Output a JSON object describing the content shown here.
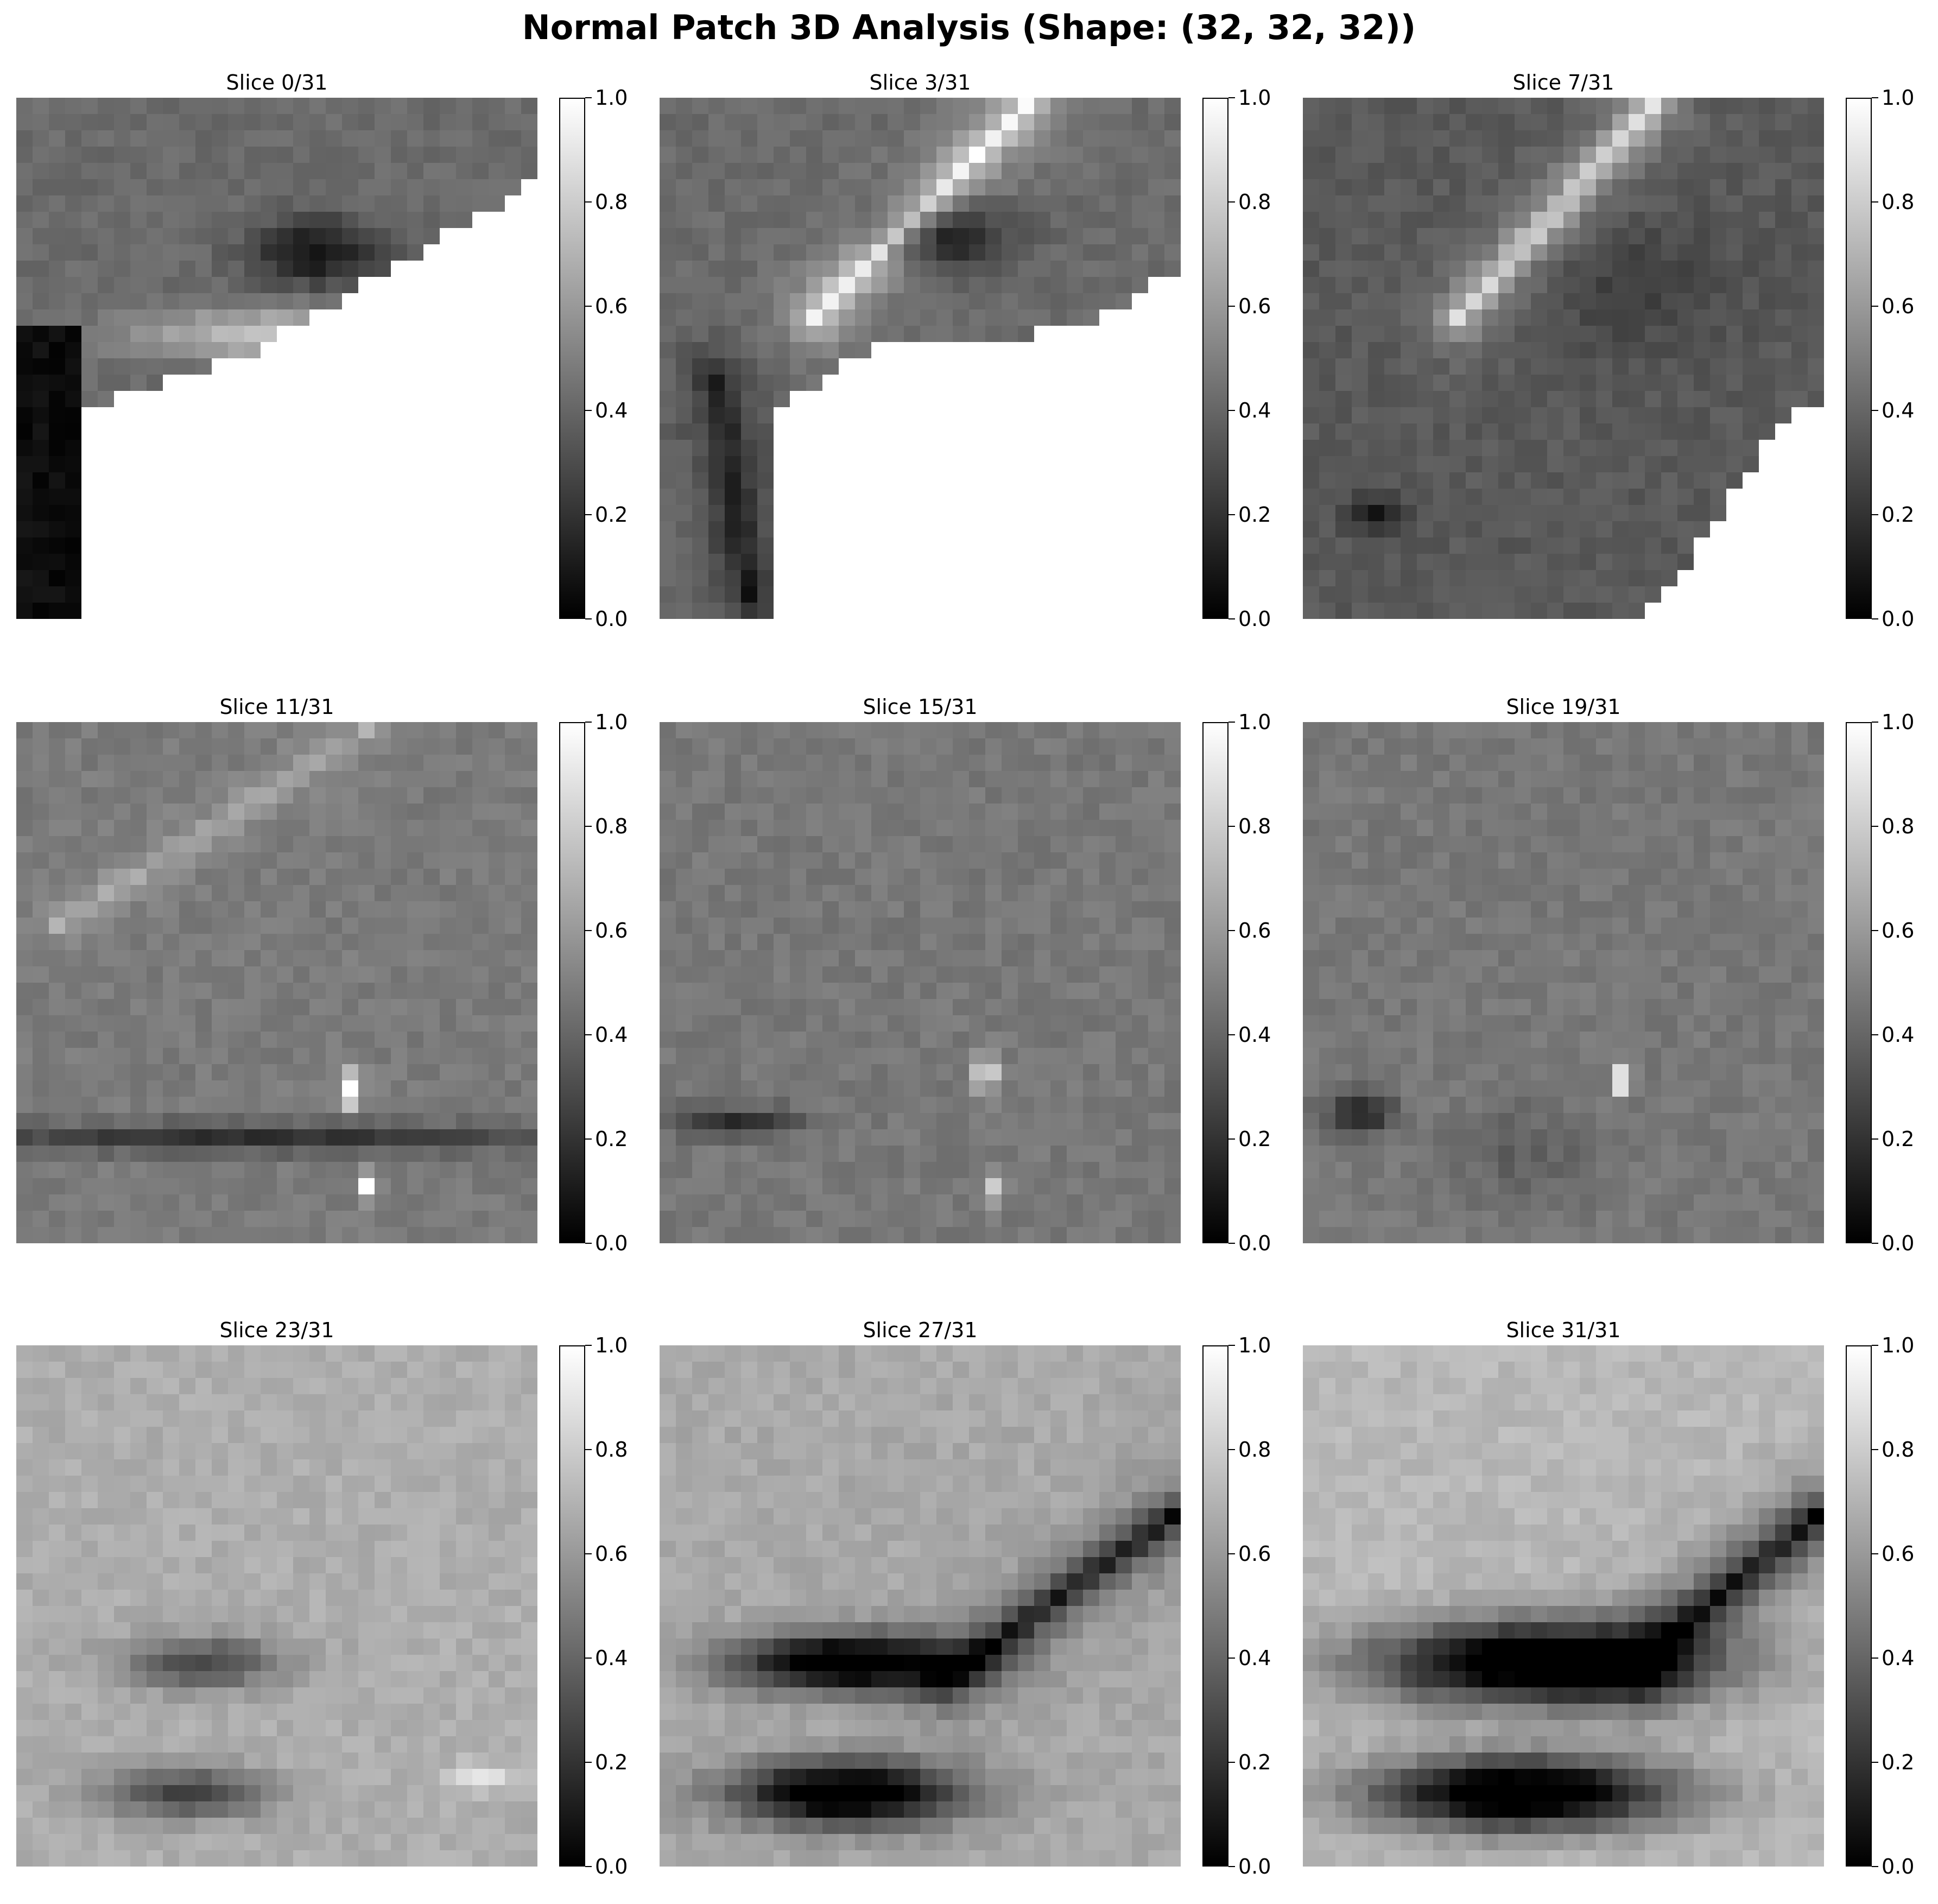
{
  "figure": {
    "title": "Normal Patch 3D Analysis (Shape: (32, 32, 32))"
  },
  "colors": {
    "background": "#ffffff",
    "colormap": "gray",
    "cmap_low": "#000000",
    "cmap_high": "#ffffff"
  },
  "chart_data": {
    "type": "heatmap",
    "volume_shape": [
      32,
      32,
      32
    ],
    "colormap": "gray",
    "vmin": 0.0,
    "vmax": 1.0,
    "colorbar_ticks": [
      "0.0",
      "0.2",
      "0.4",
      "0.6",
      "0.8",
      "1.0"
    ],
    "grid": false,
    "panels": [
      {
        "title": "Slice 0/31",
        "slice_index": 0,
        "grid_shape": [
          32,
          32
        ],
        "masked_region": "lower-right"
      },
      {
        "title": "Slice 3/31",
        "slice_index": 3,
        "grid_shape": [
          32,
          32
        ],
        "masked_region": "lower-right"
      },
      {
        "title": "Slice 7/31",
        "slice_index": 7,
        "grid_shape": [
          32,
          32
        ],
        "masked_region": "lower-right"
      },
      {
        "title": "Slice 11/31",
        "slice_index": 11,
        "grid_shape": [
          32,
          32
        ]
      },
      {
        "title": "Slice 15/31",
        "slice_index": 15,
        "grid_shape": [
          32,
          32
        ]
      },
      {
        "title": "Slice 19/31",
        "slice_index": 19,
        "grid_shape": [
          32,
          32
        ]
      },
      {
        "title": "Slice 23/31",
        "slice_index": 23,
        "grid_shape": [
          32,
          32
        ]
      },
      {
        "title": "Slice 27/31",
        "slice_index": 27,
        "grid_shape": [
          32,
          32
        ]
      },
      {
        "title": "Slice 31/31",
        "slice_index": 31,
        "grid_shape": [
          32,
          32
        ]
      }
    ]
  }
}
